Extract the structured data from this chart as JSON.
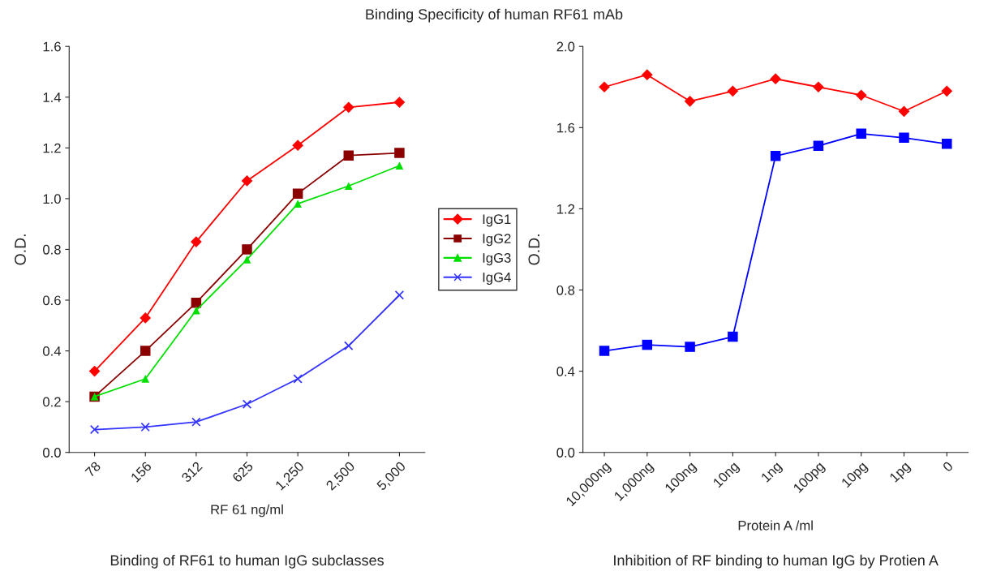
{
  "chart_data": [
    {
      "type": "line",
      "title": "Binding Specificity of human RF61 mAb",
      "xlabel": "RF 61 ng/ml",
      "ylabel": "O.D.",
      "annotations": [
        "Binding of RF61 to human IgG subclasses"
      ],
      "categories": [
        "78",
        "156",
        "312",
        "625",
        "1,250",
        "2,500",
        "5,000"
      ],
      "series": [
        {
          "name": "IgG1",
          "color": "#ff0000",
          "marker": "diamond",
          "values": [
            0.32,
            0.53,
            0.83,
            1.07,
            1.21,
            1.36,
            1.38
          ]
        },
        {
          "name": "IgG2",
          "color": "#8b0000",
          "marker": "square",
          "values": [
            0.22,
            0.4,
            0.59,
            0.8,
            1.02,
            1.17,
            1.18
          ]
        },
        {
          "name": "IgG3",
          "color": "#00e000",
          "marker": "triangle",
          "values": [
            0.22,
            0.29,
            0.56,
            0.76,
            0.98,
            1.05,
            1.13
          ]
        },
        {
          "name": "IgG4",
          "color": "#3333ff",
          "marker": "cross",
          "values": [
            0.09,
            0.1,
            0.12,
            0.19,
            0.29,
            0.42,
            0.62
          ]
        }
      ],
      "ylim": [
        0,
        1.6
      ],
      "yticks": [
        {
          "value": 0,
          "label": "0.0"
        },
        0.2,
        0.4,
        0.6,
        0.8,
        {
          "value": 1.0,
          "label": "1.0"
        },
        1.2,
        1.4,
        1.6
      ],
      "legend": "right",
      "grid": false
    },
    {
      "type": "line",
      "xlabel": "Protein A /ml",
      "ylabel": "O.D.",
      "annotations": [
        "Inhibition of RF binding to human IgG by Protien A"
      ],
      "categories": [
        "10,000ng",
        "1,000ng",
        "100ng",
        "10ng",
        "1ng",
        "100pg",
        "10pg",
        "1pg",
        "0"
      ],
      "series": [
        {
          "color": "#ff0000",
          "marker": "diamond",
          "values": [
            1.8,
            1.86,
            1.73,
            1.78,
            1.84,
            1.8,
            1.76,
            1.68,
            1.78
          ]
        },
        {
          "color": "#0000ff",
          "marker": "square",
          "values": [
            0.5,
            0.53,
            0.52,
            0.57,
            1.46,
            1.51,
            1.57,
            1.55,
            1.52
          ]
        }
      ],
      "ylim": [
        0,
        2.0
      ],
      "yticks": [
        {
          "value": 0,
          "label": "0.0"
        },
        0.4,
        0.8,
        1.2,
        1.6,
        {
          "value": 2.0,
          "label": "2.0"
        }
      ],
      "legend": false,
      "grid": false
    }
  ]
}
